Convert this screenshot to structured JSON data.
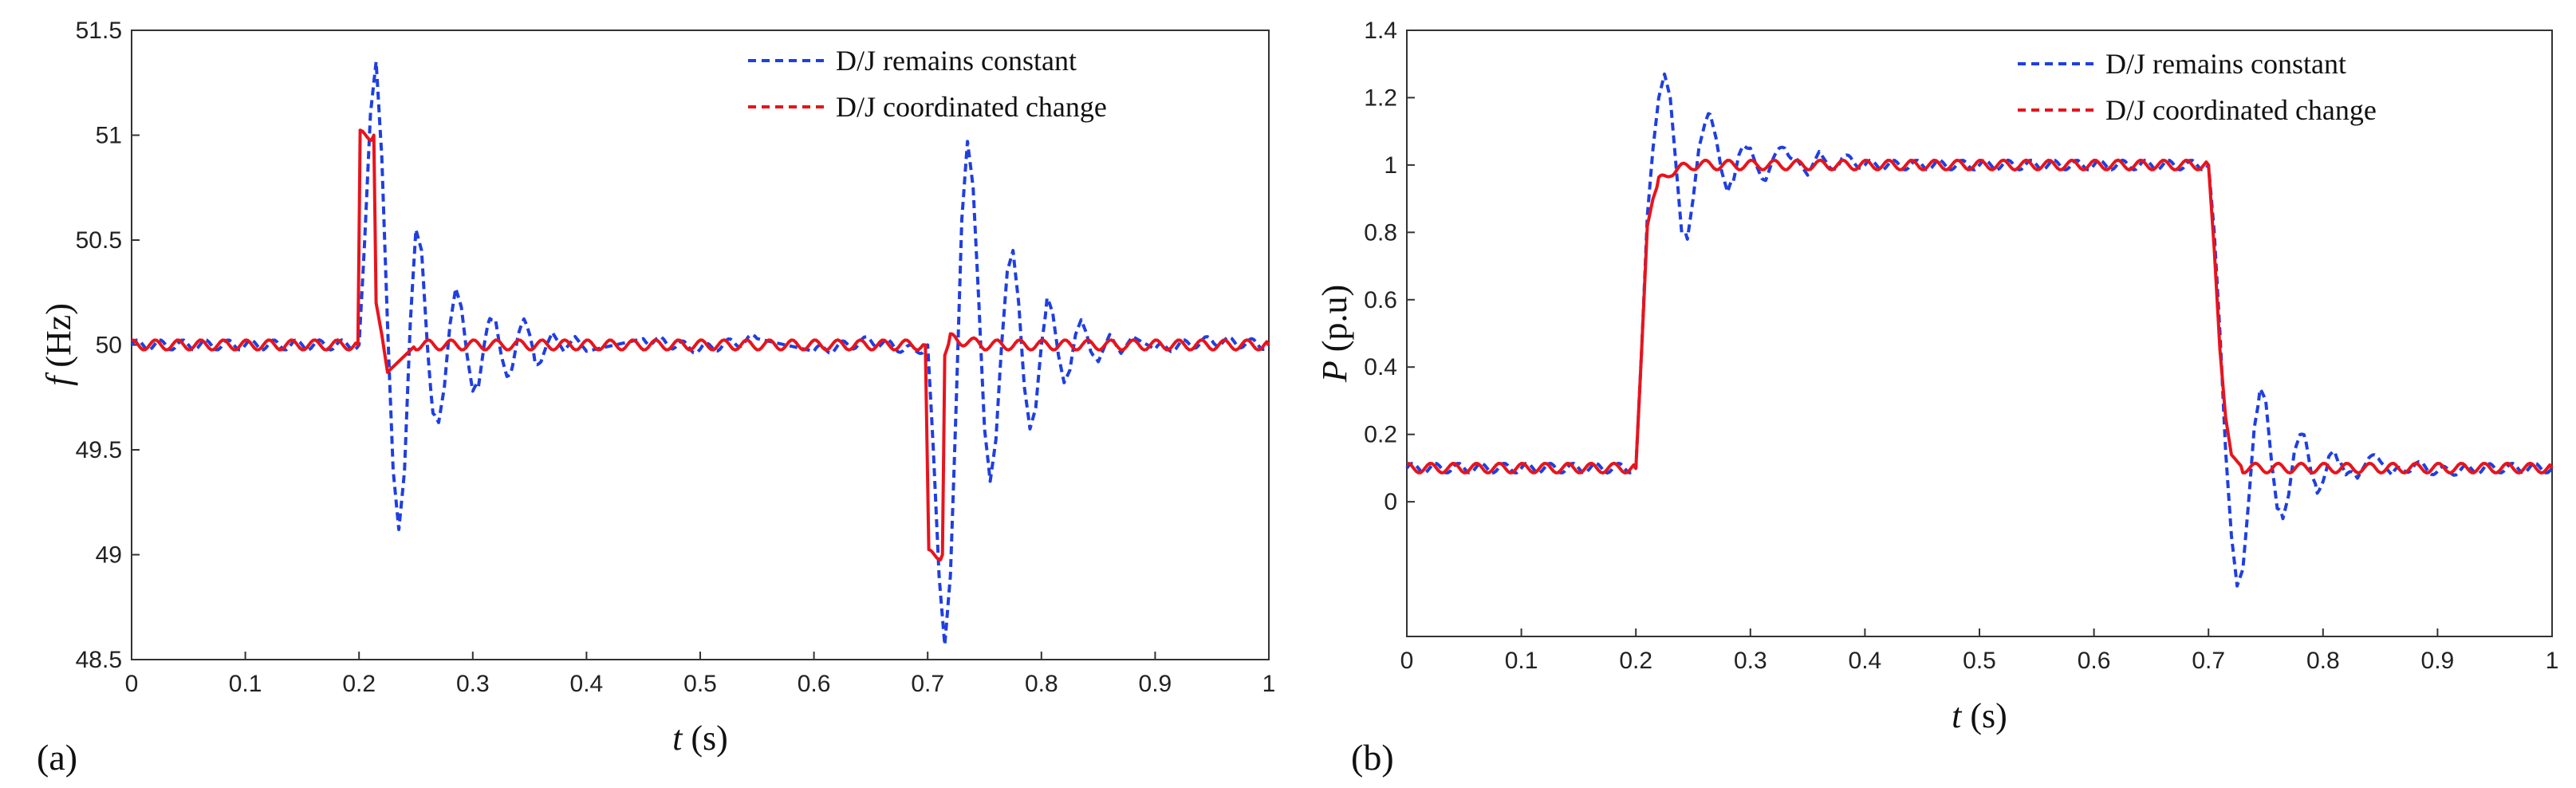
{
  "chart_data": [
    {
      "type": "line",
      "panel_label": "(a)",
      "ylabel_symbol": "f",
      "ylabel_unit": " (Hz)",
      "xlabel_symbol": "t",
      "xlabel_unit": " (s)",
      "xlim": [
        0,
        1
      ],
      "ylim": [
        48.5,
        51.5
      ],
      "xticks": [
        "0",
        "0.1",
        "0.2",
        "0.3",
        "0.4",
        "0.5",
        "0.6",
        "0.7",
        "0.8",
        "0.9",
        "1"
      ],
      "yticks": [
        "48.5",
        "49",
        "49.5",
        "50",
        "50.5",
        "51",
        "51.5"
      ],
      "legend_position": "top-right",
      "grid": false,
      "series": [
        {
          "name": "D/J remains constant",
          "color": "#1f3fe0",
          "style": "dashed",
          "x": [
            0,
            0.05,
            0.1,
            0.15,
            0.2,
            0.205,
            0.21,
            0.215,
            0.22,
            0.225,
            0.23,
            0.235,
            0.24,
            0.245,
            0.25,
            0.255,
            0.26,
            0.265,
            0.27,
            0.275,
            0.28,
            0.285,
            0.29,
            0.295,
            0.3,
            0.305,
            0.31,
            0.315,
            0.32,
            0.325,
            0.33,
            0.335,
            0.34,
            0.345,
            0.35,
            0.355,
            0.36,
            0.365,
            0.37,
            0.38,
            0.39,
            0.4,
            0.45,
            0.5,
            0.55,
            0.6,
            0.65,
            0.69,
            0.7,
            0.705,
            0.71,
            0.715,
            0.72,
            0.725,
            0.73,
            0.735,
            0.74,
            0.745,
            0.75,
            0.755,
            0.76,
            0.765,
            0.77,
            0.775,
            0.78,
            0.785,
            0.79,
            0.795,
            0.8,
            0.805,
            0.81,
            0.815,
            0.82,
            0.825,
            0.83,
            0.835,
            0.84,
            0.845,
            0.85,
            0.86,
            0.87,
            0.88,
            0.9,
            0.95,
            1.0
          ],
          "y": [
            50.0,
            50.0,
            50.0,
            50.0,
            50.0,
            50.5,
            51.1,
            51.35,
            50.9,
            50.1,
            49.4,
            49.12,
            49.4,
            50.1,
            50.55,
            50.45,
            50.0,
            49.65,
            49.63,
            49.8,
            50.1,
            50.27,
            50.18,
            49.95,
            49.78,
            49.8,
            50.0,
            50.15,
            50.12,
            49.95,
            49.85,
            49.9,
            50.05,
            50.1,
            50.05,
            49.93,
            49.92,
            50.0,
            50.06,
            49.97,
            50.04,
            49.97,
            50.03,
            49.98,
            50.03,
            49.97,
            50.02,
            49.97,
            50.0,
            49.5,
            48.9,
            48.57,
            48.9,
            49.7,
            50.6,
            50.97,
            50.75,
            50.2,
            49.6,
            49.35,
            49.55,
            50.0,
            50.35,
            50.45,
            50.2,
            49.8,
            49.6,
            49.7,
            50.0,
            50.2,
            50.15,
            49.95,
            49.82,
            49.88,
            50.05,
            50.12,
            50.05,
            49.93,
            49.92,
            50.05,
            49.96,
            50.04,
            49.98,
            50.02,
            50.0
          ]
        },
        {
          "name": "D/J coordinated change",
          "color": "#e8141c",
          "style": "solid",
          "x": [
            0,
            0.05,
            0.1,
            0.15,
            0.199,
            0.201,
            0.213,
            0.215,
            0.22,
            0.225,
            0.25,
            0.3,
            0.35,
            0.4,
            0.45,
            0.5,
            0.55,
            0.6,
            0.65,
            0.698,
            0.701,
            0.713,
            0.715,
            0.72,
            0.75,
            0.8,
            0.85,
            0.9,
            0.95,
            1.0
          ],
          "y": [
            50.0,
            50.0,
            50.0,
            50.0,
            50.0,
            51.0,
            51.0,
            50.2,
            50.05,
            49.87,
            50.0,
            50.0,
            50.0,
            50.0,
            50.0,
            50.0,
            50.0,
            50.0,
            50.0,
            50.0,
            49.0,
            49.0,
            49.95,
            50.03,
            50.0,
            50.0,
            50.0,
            50.0,
            50.0,
            50.0
          ]
        }
      ]
    },
    {
      "type": "line",
      "panel_label": "(b)",
      "ylabel_symbol": "P",
      "ylabel_unit": " (p.u)",
      "xlabel_symbol": "t",
      "xlabel_unit": " (s)",
      "xlim": [
        0,
        1
      ],
      "ylim": [
        -0.4,
        1.4
      ],
      "xticks": [
        "0",
        "0.1",
        "0.2",
        "0.3",
        "0.4",
        "0.5",
        "0.6",
        "0.7",
        "0.8",
        "0.9",
        "1"
      ],
      "yticks": [
        "0",
        "0.2",
        "0.4",
        "0.6",
        "0.8",
        "1",
        "1.2",
        "1.4"
      ],
      "legend_position": "top-right",
      "grid": false,
      "series": [
        {
          "name": "D/J remains constant",
          "color": "#1f3fe0",
          "style": "dashed",
          "x": [
            0,
            0.05,
            0.1,
            0.15,
            0.2,
            0.205,
            0.21,
            0.215,
            0.22,
            0.225,
            0.23,
            0.235,
            0.24,
            0.245,
            0.25,
            0.255,
            0.26,
            0.265,
            0.27,
            0.275,
            0.28,
            0.285,
            0.29,
            0.295,
            0.3,
            0.305,
            0.31,
            0.315,
            0.32,
            0.33,
            0.34,
            0.35,
            0.36,
            0.37,
            0.38,
            0.4,
            0.45,
            0.5,
            0.55,
            0.6,
            0.65,
            0.7,
            0.705,
            0.71,
            0.715,
            0.72,
            0.725,
            0.73,
            0.735,
            0.74,
            0.745,
            0.75,
            0.755,
            0.76,
            0.765,
            0.77,
            0.775,
            0.78,
            0.785,
            0.79,
            0.795,
            0.8,
            0.805,
            0.81,
            0.815,
            0.82,
            0.83,
            0.84,
            0.85,
            0.86,
            0.88,
            0.9,
            0.95,
            1.0
          ],
          "y": [
            0.1,
            0.1,
            0.1,
            0.1,
            0.1,
            0.45,
            0.85,
            1.05,
            1.2,
            1.27,
            1.2,
            1.0,
            0.8,
            0.78,
            0.9,
            1.05,
            1.12,
            1.15,
            1.08,
            0.98,
            0.92,
            0.95,
            1.03,
            1.07,
            1.05,
            1.0,
            0.96,
            0.97,
            1.02,
            1.05,
            1.02,
            0.97,
            1.04,
            0.99,
            1.02,
            1.0,
            1.0,
            1.0,
            1.0,
            1.0,
            1.0,
            1.0,
            0.8,
            0.5,
            0.15,
            -0.1,
            -0.25,
            -0.2,
            0.0,
            0.22,
            0.32,
            0.3,
            0.12,
            -0.02,
            -0.05,
            0.02,
            0.15,
            0.2,
            0.18,
            0.08,
            0.04,
            0.06,
            0.12,
            0.15,
            0.12,
            0.08,
            0.07,
            0.13,
            0.12,
            0.08,
            0.11,
            0.09,
            0.1,
            0.1
          ]
        },
        {
          "name": "D/J coordinated change",
          "color": "#e8141c",
          "style": "solid",
          "x": [
            0,
            0.05,
            0.1,
            0.15,
            0.2,
            0.205,
            0.21,
            0.215,
            0.22,
            0.23,
            0.25,
            0.3,
            0.35,
            0.4,
            0.45,
            0.5,
            0.55,
            0.6,
            0.65,
            0.7,
            0.705,
            0.71,
            0.715,
            0.72,
            0.73,
            0.75,
            0.8,
            0.85,
            0.9,
            0.95,
            1.0
          ],
          "y": [
            0.1,
            0.1,
            0.1,
            0.1,
            0.1,
            0.45,
            0.82,
            0.9,
            0.95,
            0.98,
            1.0,
            1.0,
            1.0,
            1.0,
            1.0,
            1.0,
            1.0,
            1.0,
            1.0,
            1.0,
            0.75,
            0.45,
            0.25,
            0.14,
            0.1,
            0.1,
            0.1,
            0.1,
            0.1,
            0.1,
            0.1
          ]
        }
      ]
    }
  ]
}
